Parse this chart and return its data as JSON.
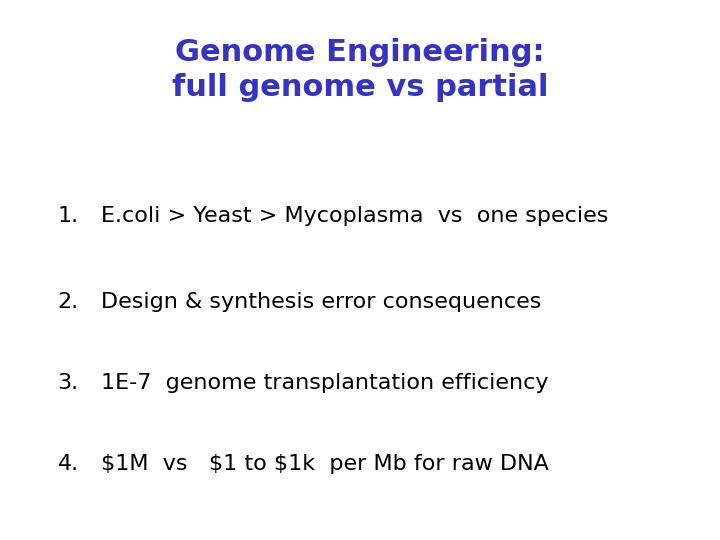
{
  "title_line1": "Genome Engineering:",
  "title_line2": "full genome vs partial",
  "title_color": "#3333cc",
  "title_fontsize": 22,
  "title_fontstyle": "bold",
  "items": [
    "E.coli > Yeast > Mycoplasma  vs  one species",
    "Design & synthesis error consequences",
    "1E-7  genome transplantation efficiency",
    "$1M  vs   $1 to $1k  per Mb for raw DNA"
  ],
  "item_numbers": [
    "1.",
    "2.",
    "3.",
    "4."
  ],
  "item_color": "#000000",
  "item_fontsize": 16,
  "background_color": "#ffffff",
  "figsize": [
    7.2,
    5.4
  ],
  "dpi": 100
}
